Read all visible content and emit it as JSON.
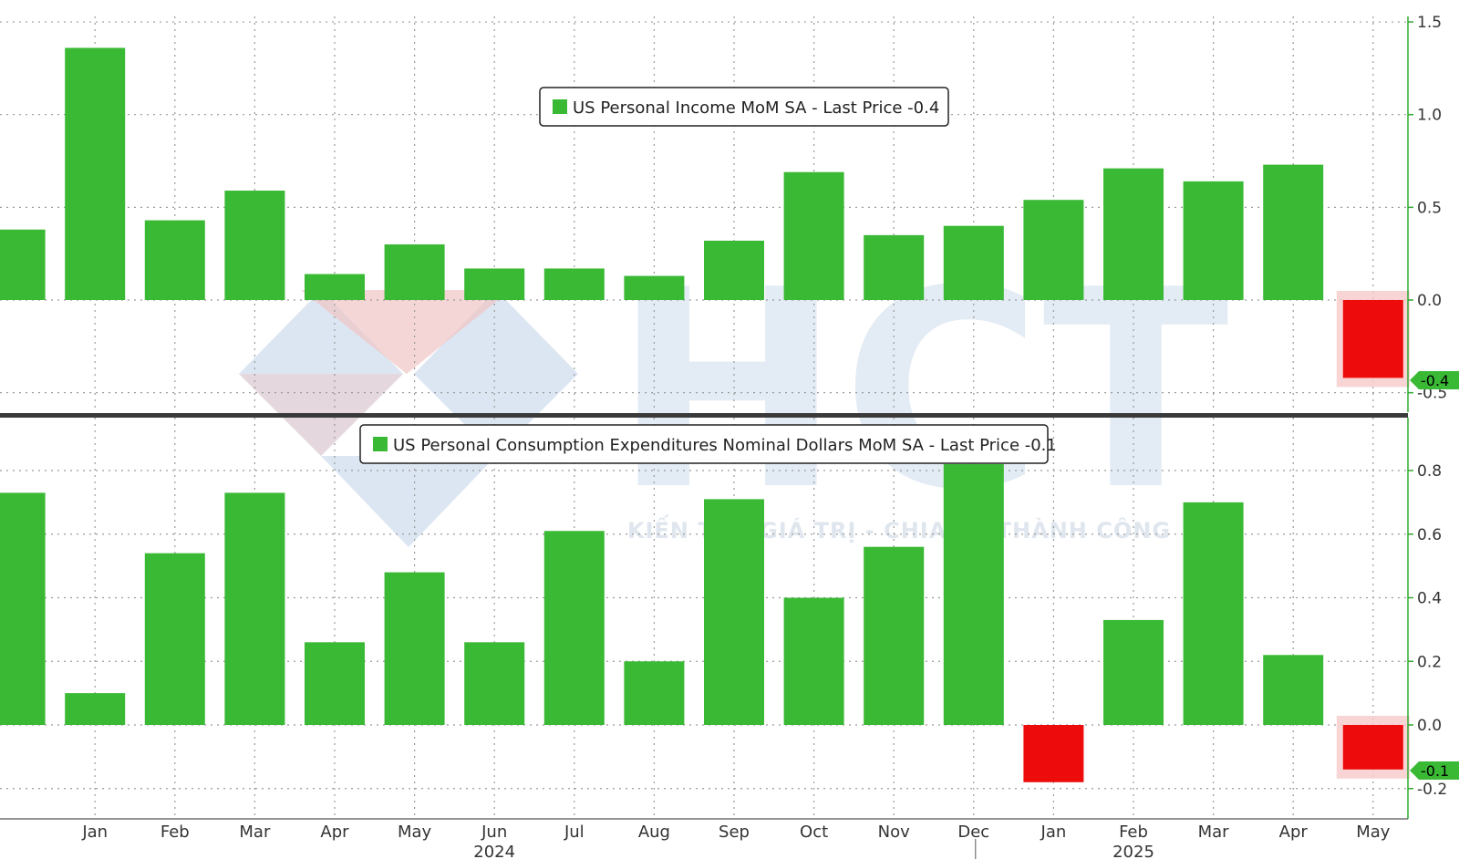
{
  "colors": {
    "positive": "#39b934",
    "negative": "#ee0b0b",
    "highlight": "#f7c9c9",
    "grid": "#9a9a9a",
    "axis": "#2eaa2e",
    "divider": "#3a3a3a"
  },
  "watermark": {
    "logo_text": "HCT",
    "slogan": "KIẾN TẠO GIÁ TRỊ - CHIA SẺ THÀNH CÔNG"
  },
  "months": [
    "Jan",
    "Feb",
    "Mar",
    "Apr",
    "May",
    "Jun",
    "Jul",
    "Aug",
    "Sep",
    "Oct",
    "Nov",
    "Dec",
    "Jan",
    "Feb",
    "Mar",
    "Apr",
    "May"
  ],
  "years": [
    {
      "label": "2024",
      "month_index": 5
    },
    {
      "label": "2025",
      "month_index": 13
    }
  ],
  "chart_data": [
    {
      "type": "bar",
      "name": "income",
      "legend": "US Personal Income MoM SA - Last Price -0.4",
      "last_value_tag": "-0.4",
      "x": [
        "Dec",
        "Jan",
        "Feb",
        "Mar",
        "Apr",
        "May",
        "Jun",
        "Jul",
        "Aug",
        "Sep",
        "Oct",
        "Nov",
        "Dec",
        "Jan",
        "Feb",
        "Mar",
        "Apr",
        "May"
      ],
      "values": [
        0.38,
        1.36,
        0.43,
        0.59,
        0.14,
        0.3,
        0.17,
        0.17,
        0.13,
        0.32,
        0.69,
        0.35,
        0.4,
        0.54,
        0.71,
        0.64,
        0.73,
        -0.42
      ],
      "ylim": [
        -0.55,
        1.5
      ],
      "yticks": [
        {
          "v": 1.5,
          "label": "1.5"
        },
        {
          "v": 1.0,
          "label": "1.0"
        },
        {
          "v": 0.5,
          "label": "0.5"
        },
        {
          "v": 0.0,
          "label": "0.0"
        },
        {
          "v": -0.5,
          "label": "-0.5"
        }
      ],
      "highlight_last": true
    },
    {
      "type": "bar",
      "name": "consumption",
      "legend": "US Personal Consumption Expenditures Nominal Dollars MoM SA - Last Price -0.1",
      "last_value_tag": "-0.1",
      "x": [
        "Dec",
        "Jan",
        "Feb",
        "Mar",
        "Apr",
        "May",
        "Jun",
        "Jul",
        "Aug",
        "Sep",
        "Oct",
        "Nov",
        "Dec",
        "Jan",
        "Feb",
        "Mar",
        "Apr",
        "May"
      ],
      "values": [
        0.73,
        0.1,
        0.54,
        0.73,
        0.26,
        0.48,
        0.26,
        0.61,
        0.2,
        0.71,
        0.4,
        0.56,
        0.82,
        -0.18,
        0.33,
        0.7,
        0.22,
        -0.14
      ],
      "ylim": [
        -0.29,
        1.0
      ],
      "yticks": [
        {
          "v": 0.8,
          "label": "0.8"
        },
        {
          "v": 0.6,
          "label": "0.6"
        },
        {
          "v": 0.4,
          "label": "0.4"
        },
        {
          "v": 0.2,
          "label": "0.2"
        },
        {
          "v": 0.0,
          "label": "0.0"
        },
        {
          "v": -0.2,
          "label": "-0.2"
        }
      ],
      "highlight_last": true
    }
  ]
}
